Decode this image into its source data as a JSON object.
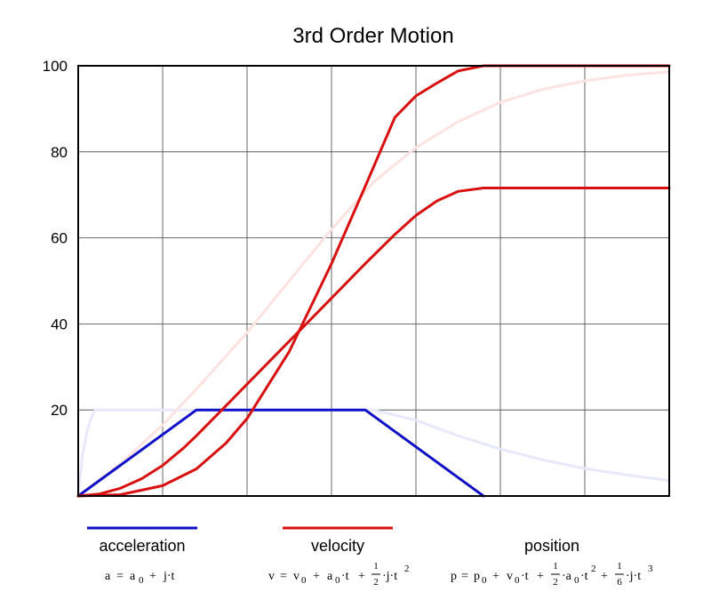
{
  "chart_data": {
    "type": "line",
    "title": "3rd Order Motion",
    "xlabel": "",
    "ylabel": "",
    "xlim": [
      0,
      7
    ],
    "ylim": [
      0,
      100
    ],
    "yticks": [
      20,
      40,
      60,
      80,
      100
    ],
    "grid": true,
    "series": [
      {
        "name": "acceleration",
        "color": "#1010c8",
        "x": [
          0,
          1.4,
          3.4,
          4.8
        ],
        "y": [
          0,
          20,
          20,
          0
        ]
      },
      {
        "name": "velocity",
        "color": "#d81010",
        "x": [
          0,
          0.25,
          0.5,
          0.75,
          1.0,
          1.25,
          1.4,
          1.75,
          2.0,
          2.5,
          3.0,
          3.4,
          3.75,
          4.0,
          4.25,
          4.5,
          4.8,
          5.5,
          7.0
        ],
        "y": [
          0,
          0.45,
          1.8,
          4.0,
          7.1,
          11.2,
          14.0,
          21.0,
          26.0,
          36.0,
          46.0,
          54.0,
          60.8,
          65.2,
          68.6,
          70.8,
          71.6,
          71.6,
          71.6
        ]
      },
      {
        "name": "position",
        "color": "#d81010",
        "x": [
          0,
          0.5,
          1.0,
          1.4,
          1.75,
          2.0,
          2.5,
          3.0,
          3.4,
          3.75,
          4.0,
          4.25,
          4.5,
          4.8,
          5.0,
          5.5,
          6.0,
          6.5,
          7.0
        ],
        "y": [
          0,
          0.3,
          2.4,
          6.3,
          12.3,
          18.0,
          33.6,
          54.0,
          72.0,
          88.0,
          93.0,
          96.0,
          98.8,
          100,
          100,
          100,
          100,
          100,
          100
        ]
      }
    ],
    "faded_series": [
      {
        "color": "#e8e8fb",
        "x": [
          0,
          0.05,
          0.1,
          0.15,
          0.2,
          0.4,
          0.8,
          1.2,
          1.6,
          2.0,
          2.5,
          3.0,
          3.5,
          4.0,
          4.5,
          5.0,
          5.5,
          6.0,
          6.5,
          7.0
        ],
        "y": [
          0,
          9.5,
          14.6,
          18.0,
          20.0,
          20.0,
          20.0,
          20.0,
          20.0,
          20.0,
          20.0,
          20.0,
          20.0,
          17.6,
          14.0,
          10.9,
          8.4,
          6.4,
          4.9,
          3.6
        ]
      },
      {
        "color": "#fde2e2",
        "x": [
          0,
          0.5,
          1.0,
          1.5,
          2.0,
          2.5,
          3.0,
          3.5,
          4.0,
          4.5,
          5.0,
          5.5,
          6.0,
          6.5,
          7.0
        ],
        "y": [
          0,
          7.5,
          16.5,
          27.0,
          38.0,
          50.0,
          62.0,
          73.0,
          81.0,
          87.0,
          91.5,
          94.5,
          96.5,
          97.8,
          98.6
        ]
      }
    ]
  },
  "legend": [
    {
      "label": "acceleration",
      "color": "#1010c8",
      "f": {
        "a": "a",
        "eq": "=",
        "a0": "a",
        "sub0": "0",
        "plus1": "+",
        "jt": "j·t"
      }
    },
    {
      "label": "velocity",
      "color": "#d81010",
      "f": {
        "v": "v",
        "eq": "=",
        "v0": "v",
        "sub0": "0",
        "plus1": "+",
        "a0": "a",
        "sub0b": "0",
        "t": "·t",
        "plus2": "+",
        "num": "1",
        "den": "2",
        "jt": "·j·t",
        "sup": "2"
      }
    },
    {
      "label": "position",
      "color": "#d81010",
      "f": {
        "p": "p",
        "eq": "=",
        "p0": "p",
        "sub0": "0",
        "plus1": "+",
        "v0": "v",
        "sub0b": "0",
        "t": "·t",
        "plus2": "+",
        "num1": "1",
        "den1": "2",
        "at": "·a",
        "sub0c": "0",
        "t2": "·t",
        "sup2": "2",
        "plus3": "+",
        "num2": "1",
        "den2": "6",
        "jt": "·j·t",
        "sup3": "3"
      }
    }
  ]
}
